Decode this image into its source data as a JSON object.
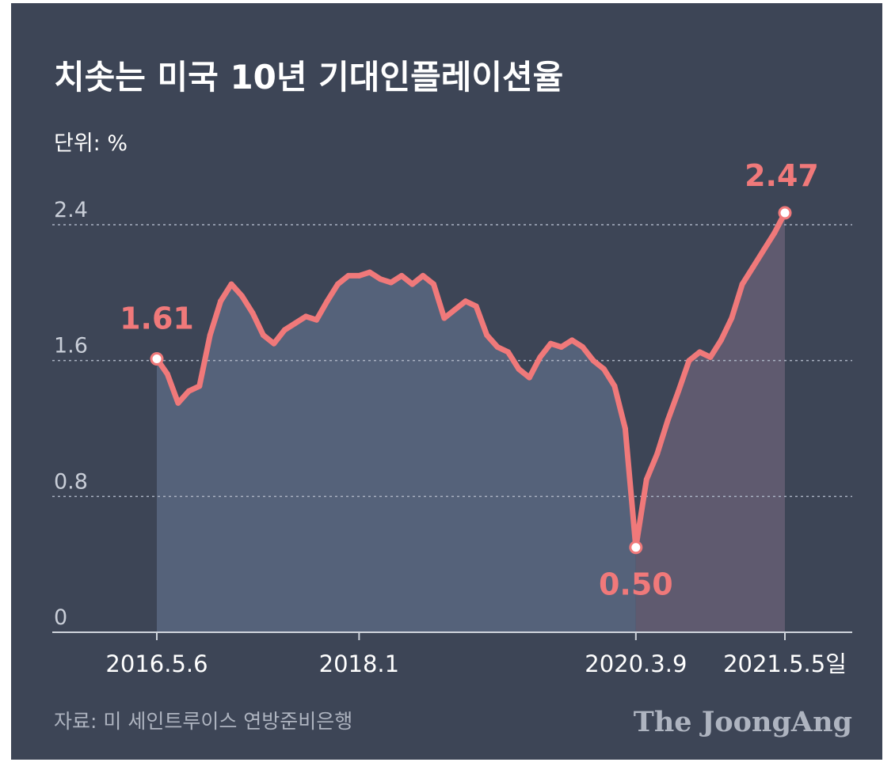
{
  "title": "치솟는 미국 10년 기대인플레이션율",
  "unit_label": "단위: %",
  "source": "자료: 미 세인트루이스 연방준비은행",
  "brand": "The JoongAng",
  "colors": {
    "background": "#3d4556",
    "line": "#f0797a",
    "area_main": "#55627a",
    "area_recent": "#5f5a6f",
    "grid": "#aab2c2",
    "text": "#ffffff"
  },
  "chart_data": {
    "type": "area",
    "title": "치솟는 미국 10년 기대인플레이션율",
    "ylabel": "단위: %",
    "xlabel": "",
    "ylim": [
      0,
      2.4
    ],
    "yticks": [
      0,
      0.8,
      1.6,
      2.4
    ],
    "ytick_labels": [
      "0",
      "0.8",
      "1.6",
      "2.4"
    ],
    "grid": true,
    "xticks": [
      "2016.5.6",
      "2018.1",
      "2020.3.9",
      "2021.5.5일"
    ],
    "x": [
      "2016.5.6",
      "2016.6",
      "2016.8",
      "2016.9",
      "2016.10",
      "2016.11",
      "2016.12",
      "2017.1",
      "2017.2",
      "2017.3",
      "2017.4",
      "2017.5",
      "2017.6",
      "2017.7",
      "2017.8",
      "2017.9",
      "2017.10",
      "2017.11",
      "2017.12",
      "2018.1",
      "2018.2",
      "2018.3",
      "2018.4",
      "2018.5",
      "2018.6",
      "2018.7",
      "2018.8",
      "2018.9",
      "2018.10",
      "2018.11",
      "2018.12",
      "2019.1",
      "2019.2",
      "2019.3",
      "2019.4",
      "2019.5",
      "2019.6",
      "2019.7",
      "2019.8",
      "2019.9",
      "2019.10",
      "2019.11",
      "2019.12",
      "2020.1",
      "2020.2",
      "2020.3.9",
      "2020.4",
      "2020.5",
      "2020.6",
      "2020.7",
      "2020.8",
      "2020.9",
      "2020.10",
      "2020.11",
      "2020.12",
      "2021.1",
      "2021.2",
      "2021.3",
      "2021.4",
      "2021.5.5"
    ],
    "values": [
      1.61,
      1.52,
      1.35,
      1.42,
      1.45,
      1.75,
      1.95,
      2.05,
      1.98,
      1.88,
      1.75,
      1.7,
      1.78,
      1.82,
      1.86,
      1.84,
      1.95,
      2.05,
      2.1,
      2.1,
      2.12,
      2.08,
      2.06,
      2.1,
      2.05,
      2.1,
      2.05,
      1.85,
      1.9,
      1.95,
      1.92,
      1.75,
      1.68,
      1.65,
      1.55,
      1.5,
      1.62,
      1.7,
      1.68,
      1.72,
      1.68,
      1.6,
      1.55,
      1.45,
      1.2,
      0.5,
      0.9,
      1.05,
      1.25,
      1.42,
      1.6,
      1.65,
      1.62,
      1.72,
      1.85,
      2.05,
      2.15,
      2.25,
      2.35,
      2.47
    ],
    "highlight_from": "2020.3.9",
    "annotations": [
      {
        "x": "2016.5.6",
        "value": 1.61,
        "label": "1.61"
      },
      {
        "x": "2020.3.9",
        "value": 0.5,
        "label": "0.50"
      },
      {
        "x": "2021.5.5",
        "value": 2.47,
        "label": "2.47"
      }
    ]
  }
}
